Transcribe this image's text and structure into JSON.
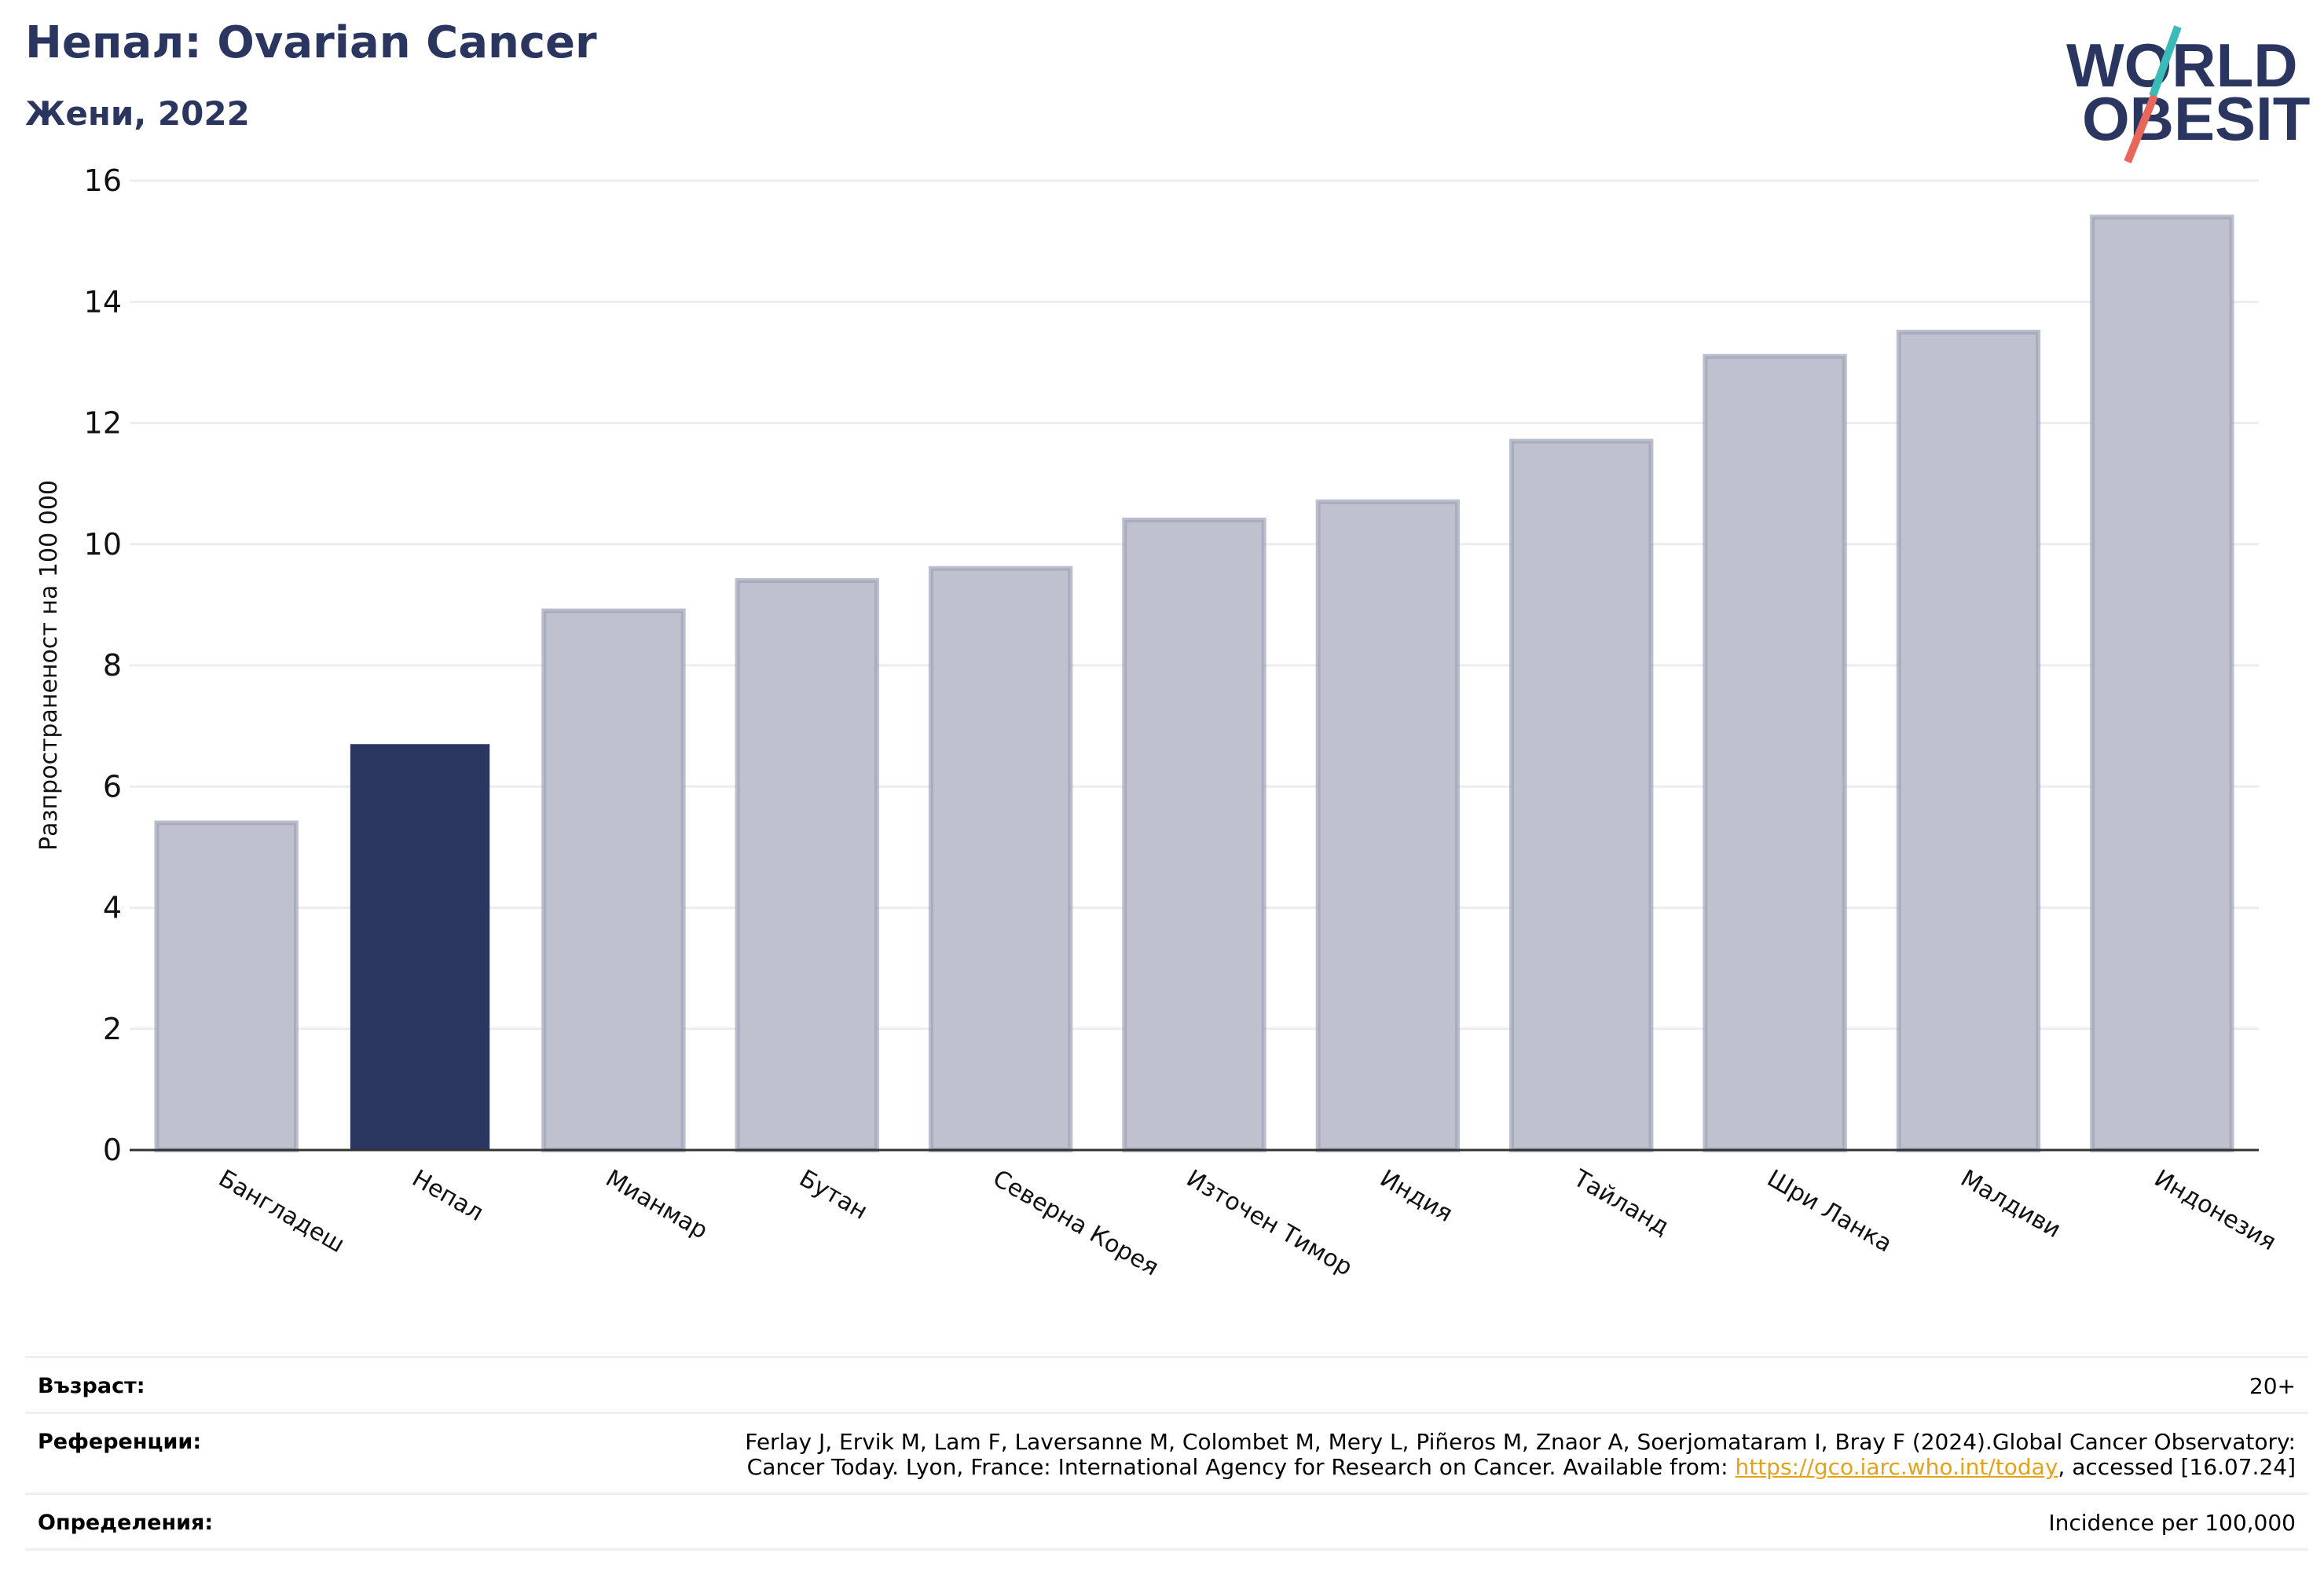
{
  "header": {
    "title": "Непал: Ovarian Cancer",
    "subtitle": "Жени, 2022"
  },
  "logo": {
    "line1": "WORLD",
    "line2": "OBESITY",
    "accent_teal": "#3bbbb8",
    "accent_red": "#e8665a",
    "navy": "#2b3660"
  },
  "chart_data": {
    "type": "bar",
    "title": "Непал: Ovarian Cancer",
    "subtitle": "Жени, 2022",
    "xlabel": "",
    "ylabel": "Разпространеност  на 100 000",
    "ylim": [
      0,
      16
    ],
    "yticks": [
      0,
      2,
      4,
      6,
      8,
      10,
      12,
      14,
      16
    ],
    "grid": true,
    "categories": [
      "Бангладеш",
      "Непал",
      "Мианмар",
      "Бутан",
      "Северна Корея",
      "Източен Тимор",
      "Индия",
      "Тайланд",
      "Шри Ланка",
      "Малдиви",
      "Индонезия"
    ],
    "values": [
      5.4,
      6.7,
      8.9,
      9.4,
      9.6,
      10.4,
      10.7,
      11.7,
      13.1,
      13.5,
      15.4
    ],
    "highlight": "Непал",
    "colors": {
      "highlight": "#2b3660",
      "other": "#bfc2ce",
      "other_edge": "#9ea2b8",
      "grid": "#ececf1",
      "axis": "#333333"
    }
  },
  "footer": {
    "age_label": "Възраст:",
    "age_value": "20+",
    "refs_label": "Референции:",
    "refs_line1": "Ferlay J, Ervik M, Lam F, Laversanne M, Colombet M, Mery L, Piñeros M, Znaor A, Soerjomataram I, Bray F (2024).Global Cancer Observatory:",
    "refs_line2_pre": "Cancer Today. Lyon, France: International Agency for Research on Cancer. Available from: ",
    "refs_link": "https://gco.iarc.who.int/today",
    "refs_line2_post": ", accessed [16.07.24]",
    "defs_label": "Определения:",
    "defs_value": "Incidence per 100,000"
  }
}
